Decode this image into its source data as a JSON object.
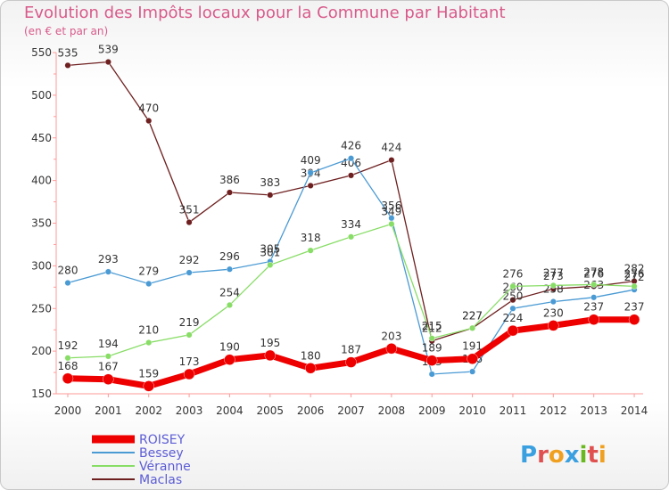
{
  "title": "Evolution des Impôts locaux pour la Commune par Habitant",
  "subtitle": "(en € et par an)",
  "brand": "Proxiti",
  "chart_data": {
    "type": "line",
    "title": "Evolution des Impôts locaux pour la Commune par Habitant",
    "subtitle": "(en € et par an)",
    "x": [
      2000,
      2001,
      2002,
      2003,
      2004,
      2005,
      2006,
      2007,
      2008,
      2009,
      2010,
      2011,
      2012,
      2013,
      2014
    ],
    "ylim": [
      150,
      550
    ],
    "yticks": [
      150,
      200,
      250,
      300,
      350,
      400,
      450,
      500,
      550
    ],
    "grid": false,
    "legend": "bottom-left",
    "series": [
      {
        "name": "Maclas",
        "color": "#6e1f1f",
        "values": [
          535,
          539,
          470,
          351,
          386,
          383,
          394,
          406,
          424,
          212,
          227,
          260,
          273,
          276,
          282
        ]
      },
      {
        "name": "Bessey",
        "color": "#4a9ad4",
        "values": [
          280,
          293,
          279,
          292,
          296,
          305,
          409,
          426,
          356,
          173,
          176,
          250,
          258,
          263,
          272
        ]
      },
      {
        "name": "Véranne",
        "color": "#88dd66",
        "values": [
          192,
          194,
          210,
          219,
          254,
          301,
          318,
          334,
          349,
          215,
          227,
          276,
          277,
          278,
          276
        ]
      },
      {
        "name": "ROISEY",
        "color": "#ee0000",
        "values": [
          168,
          167,
          159,
          173,
          190,
          195,
          180,
          187,
          203,
          189,
          191,
          224,
          230,
          237,
          237
        ]
      }
    ]
  }
}
